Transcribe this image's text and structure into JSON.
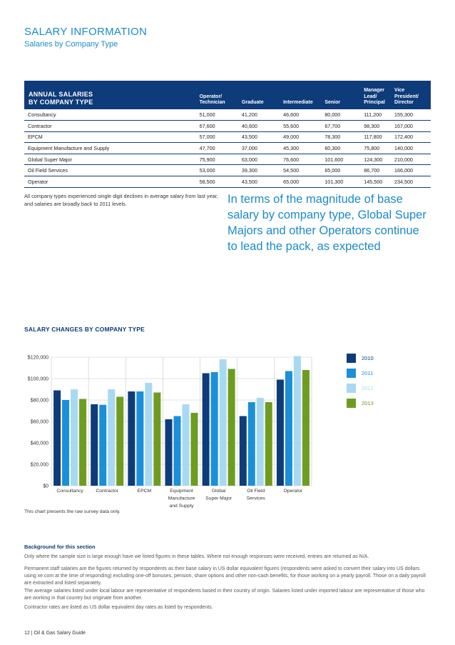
{
  "header": {
    "title": "SALARY INFORMATION",
    "subtitle": "Salaries by Company Type"
  },
  "salary_table": {
    "columns": [
      "ANNUAL SALARIES\nBY COMPANY TYPE",
      "Operator/\nTechnician",
      "Graduate",
      "Intermediate",
      "Senior",
      "Manager\nLead/\nPrincipal",
      "Vice\nPresident/\nDirector"
    ],
    "rows": [
      [
        "Consultancy",
        "51,000",
        "41,200",
        "46,600",
        "80,000",
        "111,200",
        "155,300"
      ],
      [
        "Contractor",
        "67,600",
        "40,600",
        "55,600",
        "67,700",
        "98,300",
        "167,000"
      ],
      [
        "EPCM",
        "57,000",
        "43,500",
        "49,000",
        "78,300",
        "117,800",
        "172,400"
      ],
      [
        "Equipment Manufacture and Supply",
        "47,700",
        "37,000",
        "45,300",
        "60,300",
        "75,800",
        "140,000"
      ],
      [
        "Global Super Major",
        "75,900",
        "63,000",
        "76,600",
        "101,600",
        "124,300",
        "210,000"
      ],
      [
        "Oil Field Services",
        "53,000",
        "39,300",
        "54,500",
        "65,000",
        "86,700",
        "166,000"
      ],
      [
        "Operator",
        "58,500",
        "43,500",
        "65,000",
        "101,300",
        "145,500",
        "234,500"
      ]
    ]
  },
  "note": "All company types experienced single digit declines in average salary from last year, and salaries are broadly back to 2011 levels.",
  "pull_quote": "In terms of the magnitude of base salary by company type, Global Super Majors and other Operators continue to lead the pack, as expected",
  "chart_title": "SALARY CHANGES BY COMPANY TYPE",
  "chart_data": {
    "type": "bar",
    "categories": [
      "Consultancy",
      "Contractor",
      "EPCM",
      "Equipment\nManufacture\nand Supply",
      "Global\nSuper Major",
      "Oil Field\nServices",
      "Operator"
    ],
    "series": [
      {
        "name": "2010",
        "color": "#0e3c7a",
        "values": [
          89000,
          76000,
          88000,
          62000,
          105000,
          65000,
          99000
        ]
      },
      {
        "name": "2011",
        "color": "#1b8fd9",
        "values": [
          80000,
          75500,
          88000,
          65000,
          106000,
          78000,
          107000
        ]
      },
      {
        "name": "2012",
        "color": "#a8d9f2",
        "values": [
          90000,
          90000,
          96000,
          76000,
          118000,
          82000,
          121000
        ]
      },
      {
        "name": "2013",
        "color": "#6e9c21",
        "values": [
          81000,
          83000,
          87000,
          68000,
          109000,
          78000,
          108000
        ]
      }
    ],
    "yticks": [
      "$0",
      "$20,000",
      "$40,000",
      "$60,000",
      "$80,000",
      "$100,000",
      "$120,000"
    ],
    "ylim": [
      0,
      120000
    ],
    "grid": true,
    "legend_position": "right"
  },
  "chart_note": "This chart presents the raw survey data only.",
  "background": {
    "title": "Background for this section",
    "paragraphs": [
      "Only where the sample size is large enough have we listed figures in these tables. Where not enough responses were received, entries are returned as N/A.",
      "Permanent staff salaries are the figures returned by respondents as their base salary in US dollar equivalent figures (respondents were asked to convert their salary into US dollars using xe.com at the time of responding) excluding one-off bonuses, pension, share options and other non-cash benefits, for those working on a yearly payroll. Those on a daily payroll are extracted and listed separately.",
      "The average salaries listed under local labour are representative of respondents based in their country of origin. Salaries listed under imported labour are representative of those who are working in that country but originate from another.",
      "Contractor rates are listed as US dollar equivalent day rates as listed by respondents."
    ]
  },
  "footer": "12 | Oil & Gas Salary Guide"
}
